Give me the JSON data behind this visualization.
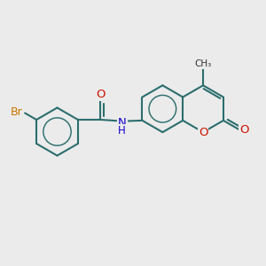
{
  "bg_color": "#ebebeb",
  "bond_color": "#2d6e6e",
  "bond_width": 1.5,
  "atom_colors": {
    "Br": "#cc7700",
    "O": "#cc1100",
    "N": "#1100cc",
    "C": "#2d6e6e"
  },
  "font_size_atom": 9.5,
  "font_size_small": 8.0
}
